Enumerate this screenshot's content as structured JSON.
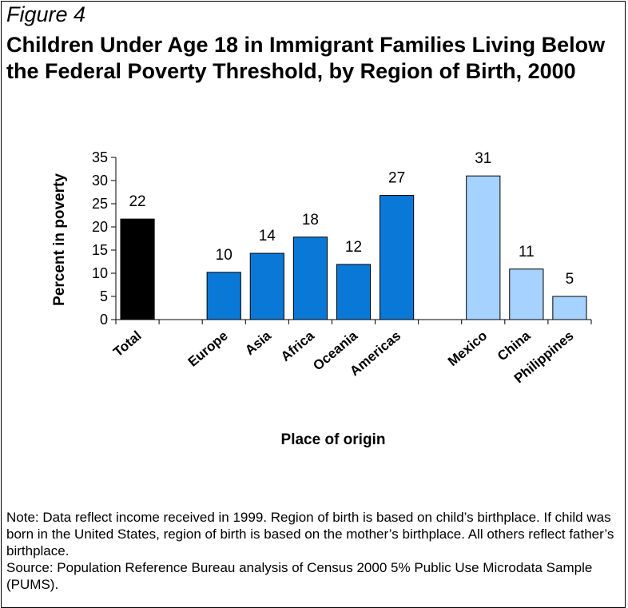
{
  "figure_label": "Figure 4",
  "title": "Children Under Age 18 in Immigrant Families Living Below the Federal Poverty Threshold, by Region of Birth, 2000",
  "note": "Note: Data reflect income received in 1999. Region of birth is based on child’s birthplace.  If child was born in the United States, region of birth is based on the mother’s birthplace. All others reflect father’s birthplace.",
  "source": "Source: Population Reference Bureau analysis of Census 2000 5% Public Use Microdata Sample (PUMS).",
  "colors": {
    "total": "#000000",
    "region": "#0A78D7",
    "country": "#A6D2FF"
  },
  "chart_data": {
    "type": "bar",
    "title": "",
    "xlabel": "Place of origin",
    "ylabel": "Percent in poverty",
    "ylim": [
      0,
      35
    ],
    "yticks": [
      0,
      5,
      10,
      15,
      20,
      25,
      30,
      35
    ],
    "grid": false,
    "categories": [
      "Total",
      "",
      "Europe",
      "Asia",
      "Africa",
      "Oceania",
      "Americas",
      "",
      "Mexico",
      "China",
      "Philippines"
    ],
    "values": [
      22,
      null,
      10,
      14,
      18,
      12,
      27,
      null,
      31,
      11,
      5
    ],
    "bar_labels": [
      "22",
      "",
      "10",
      "14",
      "18",
      "12",
      "27",
      "",
      "31",
      "11",
      "5"
    ],
    "bar_values_estimated": [
      21.7,
      null,
      10.2,
      14.3,
      17.8,
      11.9,
      26.8,
      null,
      31.0,
      10.9,
      5.0
    ],
    "bar_groups": [
      "total",
      "",
      "region",
      "region",
      "region",
      "region",
      "region",
      "",
      "country",
      "country",
      "country"
    ]
  }
}
